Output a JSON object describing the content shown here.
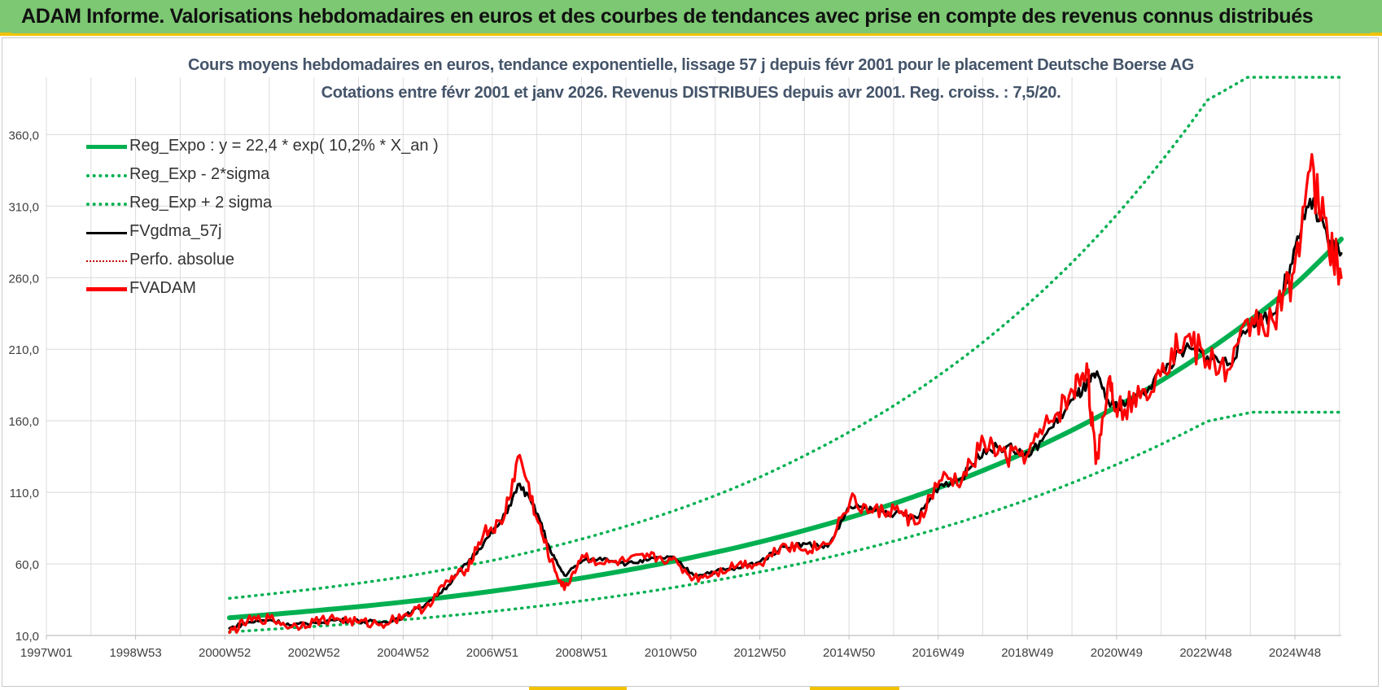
{
  "header": {
    "title": "ADAM Informe. Valorisations hebdomadaires en euros et des courbes de tendances avec prise en compte des revenus connus distribués"
  },
  "colors": {
    "banner": "#7dc873",
    "accent_yellow": "#f2c200",
    "reg_expo": "#00b050",
    "fvgdma": "#000000",
    "fvadam": "#ff0000",
    "title_text": "#44546a"
  },
  "chart_data": {
    "type": "line",
    "title": "Cours moyens hebdomadaires en euros, tendance exponentielle, lissage 57 j depuis févr 2001 pour le placement Deutsche Boerse AG",
    "subtitle": "Cotations entre févr 2001 et janv 2026. Revenus DISTRIBUES depuis avr 2001. Reg. croiss. : 7,5/20.",
    "xlabel": "",
    "ylabel": "",
    "xlim": [
      1997.0,
      2026.0
    ],
    "ylim": [
      10,
      400
    ],
    "y_ticks": [
      10,
      60,
      110,
      160,
      210,
      260,
      310,
      360
    ],
    "y_tick_labels": [
      "10,0",
      "60,0",
      "110,0",
      "160,0",
      "210,0",
      "260,0",
      "310,0",
      "360,0"
    ],
    "x_tick_labels": [
      "1997W01",
      "1998W53",
      "2000W52",
      "2002W52",
      "2004W52",
      "2006W51",
      "2008W51",
      "2010W50",
      "2012W50",
      "2014W50",
      "2016W49",
      "2018W49",
      "2020W49",
      "2022W48",
      "2024W48"
    ],
    "grid": true,
    "legend_position": "top-left",
    "legend": [
      {
        "name": "Reg_Expo : y = 22,4 * exp( 10,2% *  X_an )",
        "style": "solid-thick",
        "color": "#00b050"
      },
      {
        "name": "Reg_Exp - 2*sigma",
        "style": "dotted",
        "color": "#00b050"
      },
      {
        "name": "Reg_Exp + 2 sigma",
        "style": "dotted",
        "color": "#00b050"
      },
      {
        "name": "FVgdma_57j",
        "style": "solid",
        "color": "#000000"
      },
      {
        "name": "Perfo. absolue",
        "style": "dotted-thin",
        "color": "#c00000"
      },
      {
        "name": "FVADAM",
        "style": "solid-thick",
        "color": "#ff0000"
      }
    ],
    "series": [
      {
        "name": "Reg_Expo : y = 22,4 * exp( 10,2% *  X_an )",
        "x": [
          2001.1,
          2002,
          2003,
          2004,
          2005,
          2006,
          2007,
          2008,
          2009,
          2010,
          2011,
          2012,
          2013,
          2014,
          2015,
          2016,
          2017,
          2018,
          2019,
          2020,
          2021,
          2022,
          2023,
          2024,
          2025,
          2026
        ],
        "values": [
          22.4,
          24.6,
          27.3,
          30.2,
          33.4,
          37.0,
          41.0,
          45.4,
          50.2,
          55.6,
          61.6,
          68.2,
          75.5,
          83.6,
          92.5,
          102.4,
          113.4,
          125.6,
          139.0,
          153.9,
          170.4,
          188.7,
          208.9,
          231.3,
          256.1,
          287.0
        ]
      },
      {
        "name": "Reg_Exp - 2*sigma",
        "x": [
          2001.1,
          2002,
          2003,
          2004,
          2005,
          2006,
          2007,
          2008,
          2009,
          2010,
          2011,
          2012,
          2013,
          2014,
          2015,
          2016,
          2017,
          2018,
          2019,
          2020,
          2021,
          2022,
          2023,
          2024,
          2025,
          2026
        ],
        "values": [
          12.5,
          14.3,
          16.3,
          18.5,
          21.0,
          23.8,
          26.9,
          30.4,
          34.2,
          38.5,
          43.3,
          48.6,
          54.5,
          61.0,
          68.2,
          76.1,
          84.9,
          94.6,
          105.2,
          117.0,
          129.9,
          144.1,
          159.7,
          166.0,
          166.0,
          166.0
        ]
      },
      {
        "name": "Reg_Exp + 2 sigma",
        "x": [
          2001.1,
          2002,
          2003,
          2004,
          2005,
          2006,
          2007,
          2008,
          2009,
          2010,
          2011,
          2012,
          2013,
          2014,
          2015,
          2016,
          2017,
          2018,
          2019,
          2020,
          2021,
          2022,
          2023,
          2023.9,
          2025,
          2026
        ],
        "values": [
          36.0,
          39.0,
          42.5,
          46.5,
          51.0,
          56.5,
          62.5,
          69.5,
          77.5,
          86.5,
          96.5,
          108.0,
          121.0,
          136.0,
          152.5,
          171.0,
          192.0,
          215.5,
          242.0,
          271.5,
          305.0,
          342.5,
          384.0,
          400.0,
          400.0,
          400.0
        ]
      },
      {
        "name": "FVgdma_57j",
        "x": [
          2001.1,
          2001.5,
          2002,
          2002.5,
          2003,
          2003.5,
          2004,
          2004.5,
          2005,
          2005.5,
          2006,
          2006.4,
          2006.8,
          2007.2,
          2007.6,
          2008.0,
          2008.3,
          2008.6,
          2009.0,
          2009.5,
          2010,
          2010.5,
          2011,
          2011.5,
          2012,
          2012.5,
          2013,
          2013.5,
          2014,
          2014.5,
          2015,
          2015.5,
          2016,
          2016.5,
          2017,
          2017.5,
          2018,
          2018.5,
          2019,
          2019.5,
          2020,
          2020.3,
          2020.5,
          2020.8,
          2021,
          2021.5,
          2022,
          2022.5,
          2023,
          2023.5,
          2024,
          2024.5,
          2024.9,
          2025.3,
          2025.7,
          2026
        ],
        "values": [
          15,
          19,
          21,
          17,
          19,
          21,
          20,
          19,
          23,
          32,
          45,
          60,
          75,
          90,
          116,
          95,
          68,
          52,
          62,
          64,
          60,
          63,
          65,
          52,
          55,
          57,
          62,
          72,
          74,
          72,
          100,
          98,
          95,
          92,
          115,
          120,
          140,
          142,
          135,
          155,
          175,
          185,
          192,
          172,
          170,
          178,
          195,
          210,
          205,
          200,
          230,
          235,
          270,
          315,
          285,
          277
        ]
      },
      {
        "name": "FVADAM",
        "x": [
          2001.1,
          2001.5,
          2002,
          2002.5,
          2003,
          2003.5,
          2004,
          2004.5,
          2005,
          2005.5,
          2006,
          2006.4,
          2006.8,
          2007.2,
          2007.6,
          2008.0,
          2008.3,
          2008.6,
          2009.0,
          2009.5,
          2010,
          2010.5,
          2011,
          2011.5,
          2012,
          2012.5,
          2013,
          2013.5,
          2014,
          2014.5,
          2015,
          2015.5,
          2016,
          2016.5,
          2017,
          2017.5,
          2018,
          2018.5,
          2019,
          2019.5,
          2020,
          2020.3,
          2020.5,
          2020.8,
          2021,
          2021.5,
          2022,
          2022.5,
          2023,
          2023.5,
          2024,
          2024.5,
          2024.9,
          2025.3,
          2025.7,
          2026
        ],
        "values": [
          12,
          20,
          22,
          16,
          20,
          22,
          19,
          18,
          24,
          30,
          48,
          56,
          82,
          88,
          136,
          90,
          62,
          42,
          66,
          60,
          62,
          65,
          63,
          50,
          54,
          60,
          60,
          74,
          70,
          74,
          104,
          96,
          98,
          88,
          118,
          118,
          145,
          134,
          138,
          160,
          180,
          200,
          130,
          190,
          168,
          176,
          200,
          218,
          202,
          196,
          232,
          228,
          262,
          335,
          288,
          260
        ]
      }
    ]
  }
}
